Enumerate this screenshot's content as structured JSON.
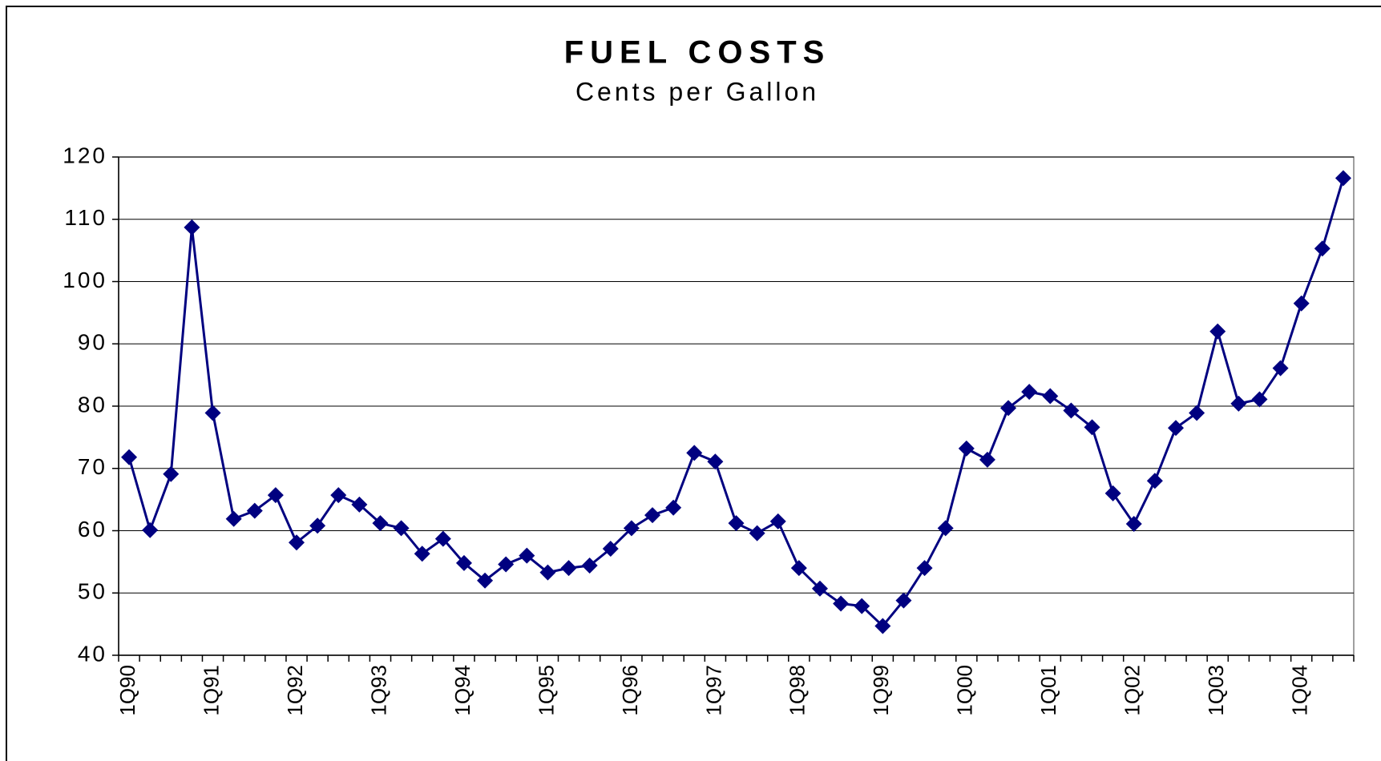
{
  "chart_data": {
    "type": "line",
    "title": "FUEL COSTS",
    "subtitle": "Cents per Gallon",
    "categories": [
      "1Q90",
      null,
      null,
      null,
      "1Q91",
      null,
      null,
      null,
      "1Q92",
      null,
      null,
      null,
      "1Q93",
      null,
      null,
      null,
      "1Q94",
      null,
      null,
      null,
      "1Q95",
      null,
      null,
      null,
      "1Q96",
      null,
      null,
      null,
      "1Q97",
      null,
      null,
      null,
      "1Q98",
      null,
      null,
      null,
      "1Q99",
      null,
      null,
      null,
      "1Q00",
      null,
      null,
      null,
      "1Q01",
      null,
      null,
      null,
      "1Q02",
      null,
      null,
      null,
      "1Q03",
      null,
      null,
      null,
      "1Q04",
      null,
      null
    ],
    "series": [
      {
        "name": "Fuel costs",
        "color": "#000080",
        "values": [
          71.8,
          60.1,
          69.1,
          108.7,
          78.9,
          61.9,
          63.2,
          65.7,
          58.1,
          60.8,
          65.7,
          64.2,
          61.2,
          60.4,
          56.3,
          58.7,
          54.8,
          52.0,
          54.6,
          56.0,
          53.3,
          54.0,
          54.4,
          57.1,
          60.4,
          62.5,
          63.7,
          72.5,
          71.1,
          61.2,
          59.6,
          61.5,
          54.0,
          50.7,
          48.3,
          47.9,
          44.7,
          48.8,
          54.0,
          60.4,
          73.2,
          71.4,
          79.7,
          82.3,
          81.6,
          79.3,
          76.6,
          66.0,
          61.1,
          68.0,
          76.5,
          78.9,
          92.0,
          80.4,
          81.1,
          86.1,
          96.5,
          105.3,
          116.6
        ]
      }
    ],
    "ylim": [
      40,
      120
    ],
    "yticks": [
      40,
      50,
      60,
      70,
      80,
      90,
      100,
      110,
      120
    ],
    "grid": true
  }
}
